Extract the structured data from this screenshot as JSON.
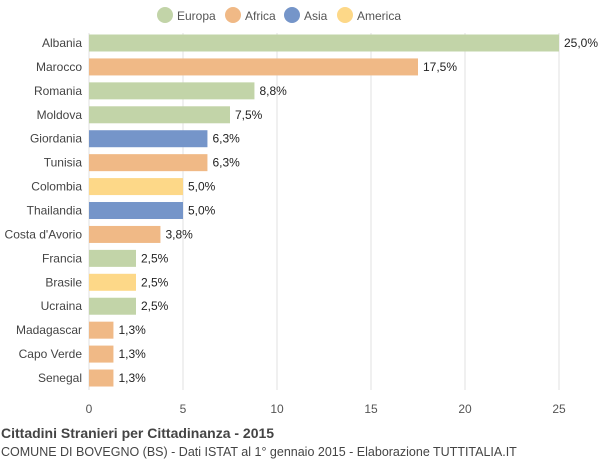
{
  "chart_data": {
    "type": "bar",
    "orientation": "horizontal",
    "title": "Cittadini Stranieri per Cittadinanza - 2015",
    "subtitle": "COMUNE DI BOVEGNO (BS) - Dati ISTAT al 1° gennaio 2015 - Elaborazione TUTTITALIA.IT",
    "xlim": [
      0,
      25
    ],
    "xticks": [
      0,
      5,
      10,
      15,
      20,
      25
    ],
    "grid": true,
    "legend_position": "top",
    "legend": [
      {
        "name": "Europa",
        "color": "#c2d4a8"
      },
      {
        "name": "Africa",
        "color": "#f0b986"
      },
      {
        "name": "Asia",
        "color": "#7595c9"
      },
      {
        "name": "America",
        "color": "#fdd888"
      }
    ],
    "bars": [
      {
        "category": "Albania",
        "value": 25.0,
        "label": "25,0%",
        "group": "Europa"
      },
      {
        "category": "Marocco",
        "value": 17.5,
        "label": "17,5%",
        "group": "Africa"
      },
      {
        "category": "Romania",
        "value": 8.8,
        "label": "8,8%",
        "group": "Europa"
      },
      {
        "category": "Moldova",
        "value": 7.5,
        "label": "7,5%",
        "group": "Europa"
      },
      {
        "category": "Giordania",
        "value": 6.3,
        "label": "6,3%",
        "group": "Asia"
      },
      {
        "category": "Tunisia",
        "value": 6.3,
        "label": "6,3%",
        "group": "Africa"
      },
      {
        "category": "Colombia",
        "value": 5.0,
        "label": "5,0%",
        "group": "America"
      },
      {
        "category": "Thailandia",
        "value": 5.0,
        "label": "5,0%",
        "group": "Asia"
      },
      {
        "category": "Costa d'Avorio",
        "value": 3.8,
        "label": "3,8%",
        "group": "Africa"
      },
      {
        "category": "Francia",
        "value": 2.5,
        "label": "2,5%",
        "group": "Europa"
      },
      {
        "category": "Brasile",
        "value": 2.5,
        "label": "2,5%",
        "group": "America"
      },
      {
        "category": "Ucraina",
        "value": 2.5,
        "label": "2,5%",
        "group": "Europa"
      },
      {
        "category": "Madagascar",
        "value": 1.3,
        "label": "1,3%",
        "group": "Africa"
      },
      {
        "category": "Capo Verde",
        "value": 1.3,
        "label": "1,3%",
        "group": "Africa"
      },
      {
        "category": "Senegal",
        "value": 1.3,
        "label": "1,3%",
        "group": "Africa"
      }
    ]
  }
}
